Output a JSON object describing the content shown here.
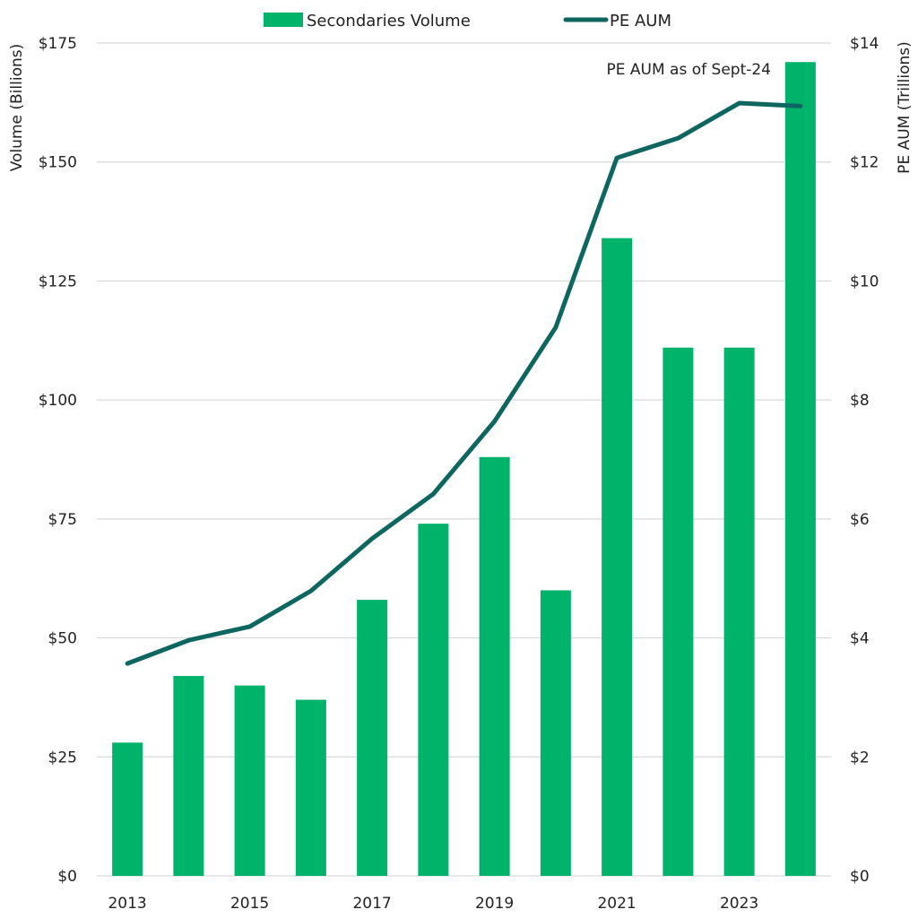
{
  "chart_data": {
    "type": "bar",
    "title": "",
    "categories": [
      "2013",
      "2014",
      "2015",
      "2016",
      "2017",
      "2018",
      "2019",
      "2020",
      "2021",
      "2022",
      "2023",
      "2024"
    ],
    "x_tick_labels": [
      "2013",
      "",
      "2015",
      "",
      "2017",
      "",
      "2019",
      "",
      "2021",
      "",
      "2023",
      ""
    ],
    "series": [
      {
        "name": "Secondaries Volume",
        "type": "bar",
        "axis": "left",
        "color": "#00b36b",
        "values": [
          28,
          42,
          40,
          37,
          58,
          74,
          88,
          60,
          134,
          111,
          111,
          171
        ]
      },
      {
        "name": "PE AUM",
        "type": "line",
        "axis": "right",
        "color": "#0e6660",
        "values": [
          3.57,
          3.96,
          4.19,
          4.79,
          5.67,
          6.42,
          7.64,
          9.22,
          12.07,
          12.4,
          12.99,
          12.94
        ]
      }
    ],
    "left_axis": {
      "label": "Volume (Billions)",
      "range": [
        0,
        175
      ],
      "ticks": [
        0,
        25,
        50,
        75,
        100,
        125,
        150,
        175
      ],
      "tick_labels": [
        "$0",
        "$25",
        "$50",
        "$75",
        "$100",
        "$125",
        "$150",
        "$175"
      ]
    },
    "right_axis": {
      "label": "PE AUM (Trillions)",
      "range": [
        0,
        14
      ],
      "ticks": [
        0,
        2,
        4,
        6,
        8,
        10,
        12,
        14
      ],
      "tick_labels": [
        "$0",
        "$2",
        "$4",
        "$6",
        "$8",
        "$10",
        "$12",
        "$14"
      ]
    },
    "grid": true,
    "grid_color": "#d9d9d9",
    "legend": {
      "placement": "top-center",
      "entries": [
        "Secondaries Volume",
        "PE AUM"
      ]
    },
    "annotations": [
      {
        "text": "PE AUM as of Sept-24",
        "near": "2024 PE AUM point"
      }
    ]
  }
}
